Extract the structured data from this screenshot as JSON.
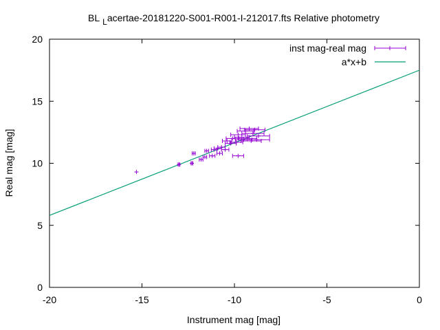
{
  "chart_data": {
    "type": "scatter",
    "title": {
      "prefix": "BL",
      "subscript": "L",
      "rest": "acertae-20181220-S001-R001-I-212017.fts Relative photometry"
    },
    "xlabel": "Instrument mag [mag]",
    "ylabel": "Real mag [mag]",
    "xlim": [
      -20,
      0
    ],
    "ylim": [
      0,
      20
    ],
    "xticks": [
      -20,
      -15,
      -10,
      -5,
      0
    ],
    "yticks": [
      0,
      5,
      10,
      15,
      20
    ],
    "legend_position": "top-right",
    "series": [
      {
        "name": "inst mag-real mag",
        "kind": "points-with-x-errorbars",
        "color": "#9400d3",
        "points": [
          {
            "x": -15.3,
            "y": 9.3,
            "xerr": 0.0
          },
          {
            "x": -13.0,
            "y": 9.9,
            "xerr": 0.05
          },
          {
            "x": -12.3,
            "y": 10.0,
            "xerr": 0.05
          },
          {
            "x": -12.2,
            "y": 10.8,
            "xerr": 0.08
          },
          {
            "x": -11.8,
            "y": 10.3,
            "xerr": 0.1
          },
          {
            "x": -11.6,
            "y": 10.5,
            "xerr": 0.1
          },
          {
            "x": -11.5,
            "y": 11.0,
            "xerr": 0.1
          },
          {
            "x": -11.2,
            "y": 10.6,
            "xerr": 0.15
          },
          {
            "x": -11.1,
            "y": 11.1,
            "xerr": 0.15
          },
          {
            "x": -10.9,
            "y": 11.2,
            "xerr": 0.2
          },
          {
            "x": -10.8,
            "y": 10.8,
            "xerr": 0.15
          },
          {
            "x": -10.7,
            "y": 11.3,
            "xerr": 0.2
          },
          {
            "x": -10.5,
            "y": 11.1,
            "xerr": 0.2
          },
          {
            "x": -10.4,
            "y": 11.8,
            "xerr": 0.25
          },
          {
            "x": -10.2,
            "y": 11.6,
            "xerr": 0.3
          },
          {
            "x": -10.1,
            "y": 12.0,
            "xerr": 0.35
          },
          {
            "x": -9.9,
            "y": 11.7,
            "xerr": 0.35
          },
          {
            "x": -9.8,
            "y": 12.3,
            "xerr": 0.4
          },
          {
            "x": -9.8,
            "y": 10.6,
            "xerr": 0.3
          },
          {
            "x": -9.6,
            "y": 12.1,
            "xerr": 0.4
          },
          {
            "x": -9.5,
            "y": 11.9,
            "xerr": 0.45
          },
          {
            "x": -9.4,
            "y": 12.6,
            "xerr": 0.45
          },
          {
            "x": -9.3,
            "y": 12.0,
            "xerr": 0.5
          },
          {
            "x": -9.2,
            "y": 12.8,
            "xerr": 0.5
          },
          {
            "x": -9.1,
            "y": 11.8,
            "xerr": 0.55
          },
          {
            "x": -9.0,
            "y": 12.4,
            "xerr": 0.6
          },
          {
            "x": -8.9,
            "y": 12.7,
            "xerr": 0.55
          },
          {
            "x": -8.8,
            "y": 11.9,
            "xerr": 0.7
          },
          {
            "x": -8.7,
            "y": 12.2,
            "xerr": 0.6
          }
        ]
      },
      {
        "name": "a*x+b",
        "kind": "line",
        "color": "#009e73",
        "slope": 0.585,
        "intercept": 17.5
      }
    ]
  }
}
